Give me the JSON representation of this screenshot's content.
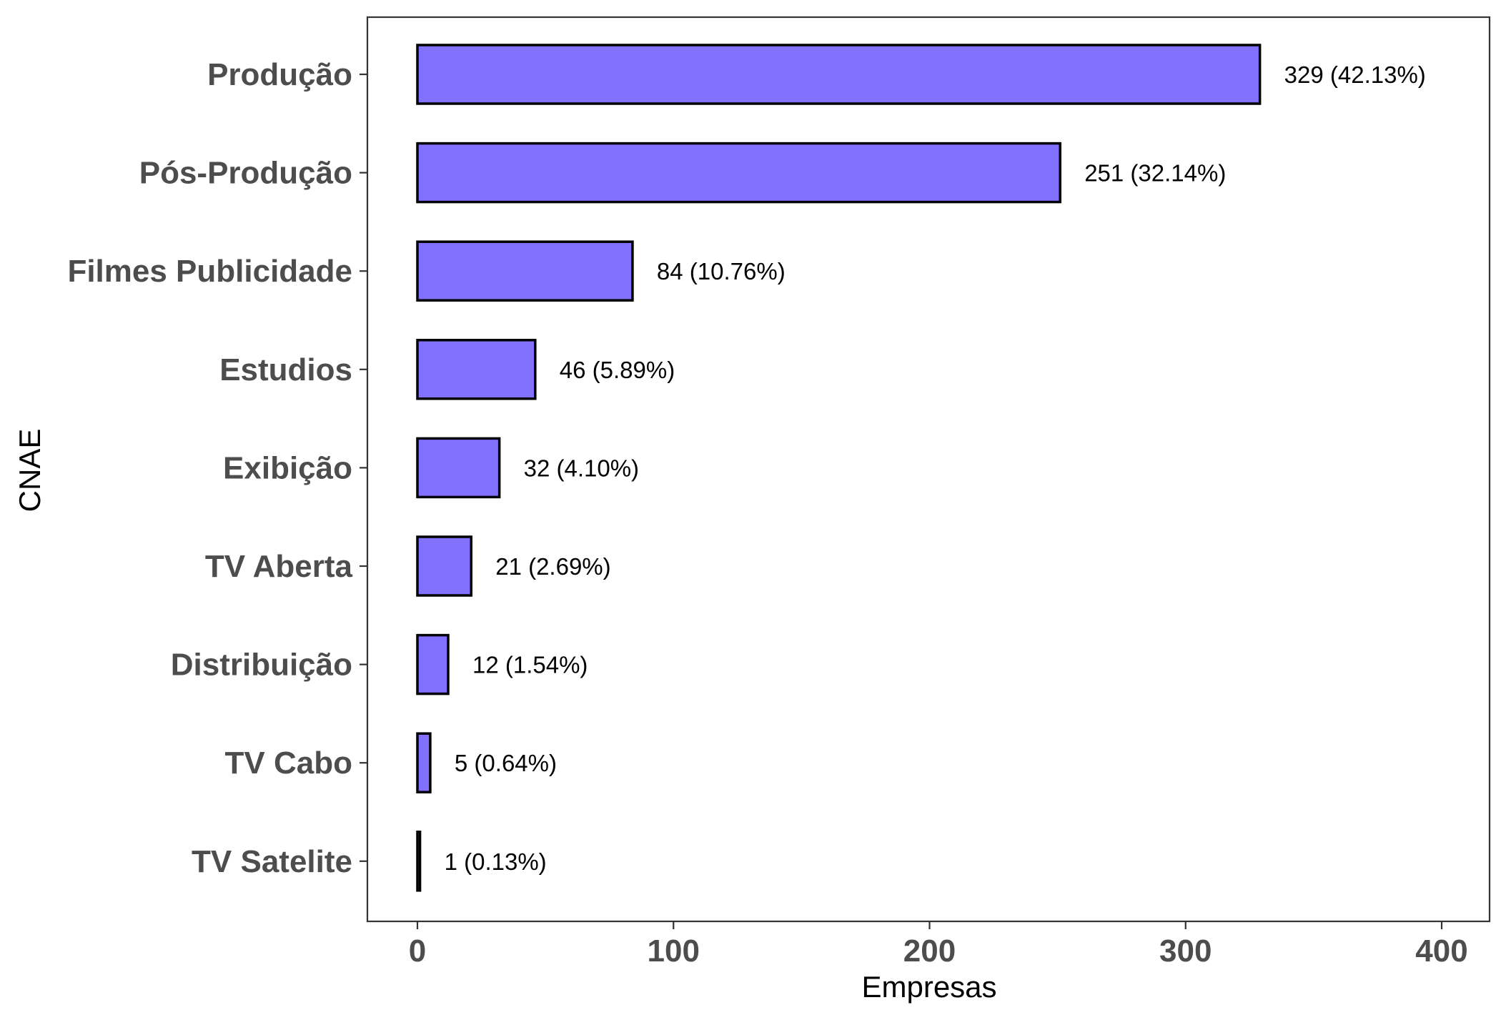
{
  "chart_data": {
    "type": "bar",
    "orientation": "horizontal",
    "categories": [
      "Produção",
      "Pós-Produção",
      "Filmes Publicidade",
      "Estudios",
      "Exibição",
      "TV Aberta",
      "Distribuição",
      "TV Cabo",
      "TV Satelite"
    ],
    "values": [
      329,
      251,
      84,
      46,
      32,
      21,
      12,
      5,
      1
    ],
    "data_labels": [
      "329 (42.13%)",
      "251 (32.14%)",
      "84 (10.76%)",
      "46 (5.89%)",
      "32 (4.10%)",
      "21 (2.69%)",
      "12 (1.54%)",
      "5 (0.64%)",
      "1 (0.13%)"
    ],
    "xlabel": "Empresas",
    "ylabel": "CNAE",
    "xlim": [
      0,
      400
    ],
    "x_ticks": [
      0,
      100,
      200,
      300,
      400
    ],
    "x_tick_labels": [
      "0",
      "100",
      "200",
      "300",
      "400"
    ],
    "grid": false,
    "legend": "none",
    "colors": {
      "bar_fill": "#8270ff",
      "bar_stroke": "#000000",
      "panel_border": "#333333",
      "tick_text": "#4d4d4d"
    }
  }
}
